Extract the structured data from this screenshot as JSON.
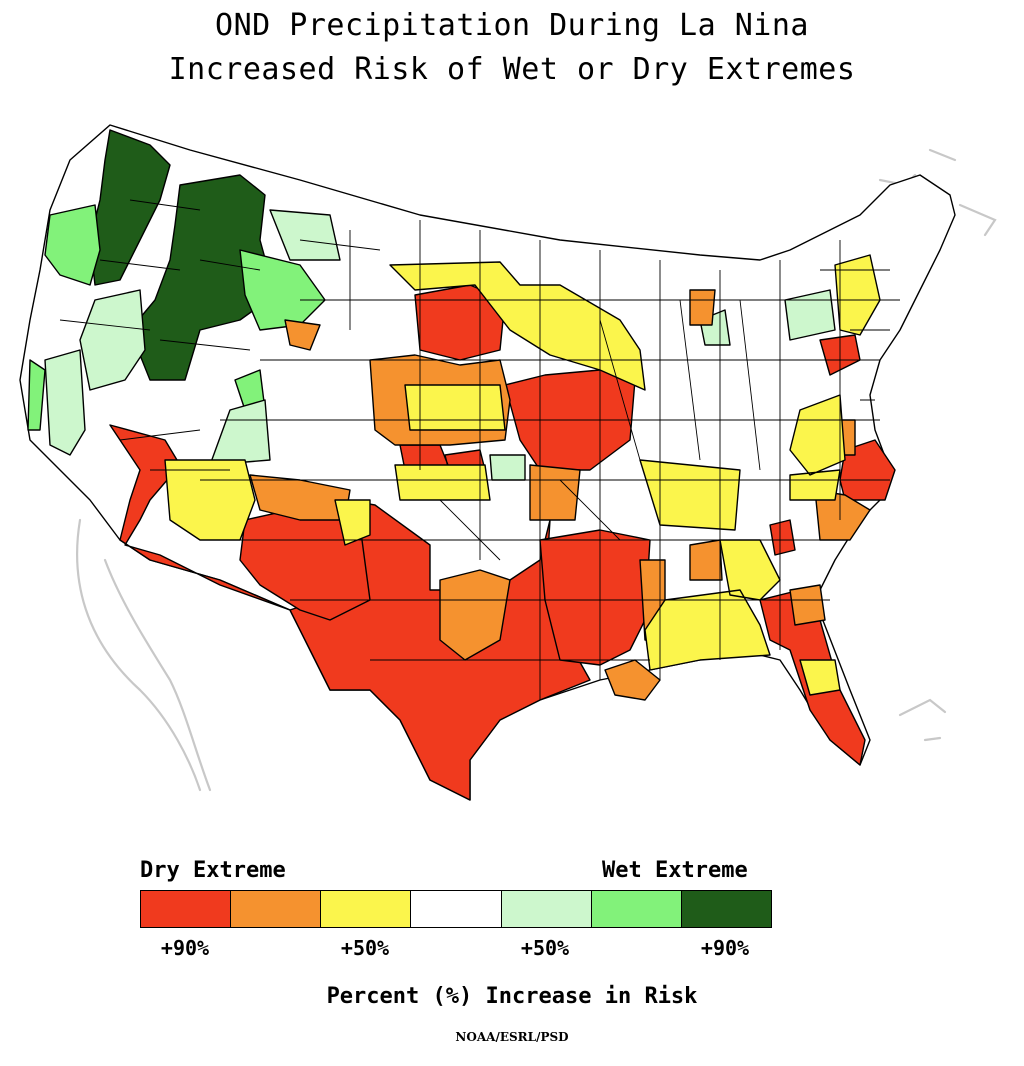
{
  "title_line1": "OND Precipitation During La Nina",
  "title_line2": "Increased Risk of Wet or Dry Extremes",
  "legend": {
    "dry_label": "Dry Extreme",
    "wet_label": "Wet Extreme",
    "colors": [
      "#f03a1e",
      "#f5922f",
      "#fbf54c",
      "#ffffff",
      "#cdf7cd",
      "#82f27a",
      "#1f5c19"
    ],
    "ticks": [
      "+90%",
      "+50%",
      "+50%",
      "+90%"
    ],
    "axis_label": "Percent (%) Increase in Risk"
  },
  "credit": "NOAA/ESRL/PSD",
  "map": {
    "regions": [
      {
        "name": "southwest-desert-dry",
        "category": "dry-90"
      },
      {
        "name": "texas-dry",
        "category": "dry-90"
      },
      {
        "name": "lower-mississippi-dry",
        "category": "dry-90"
      },
      {
        "name": "florida-dry",
        "category": "dry-90"
      },
      {
        "name": "northern-plains-dry",
        "category": "dry-90"
      },
      {
        "name": "carolinas-dry",
        "category": "dry-90"
      },
      {
        "name": "pennsylvania-dry",
        "category": "dry-90"
      },
      {
        "name": "central-plains-moderate",
        "category": "dry-70"
      },
      {
        "name": "west-texas-moderate",
        "category": "dry-70"
      },
      {
        "name": "louisiana-delta-moderate",
        "category": "dry-70"
      },
      {
        "name": "southeast-moderate",
        "category": "dry-70"
      },
      {
        "name": "new-mexico-yellow",
        "category": "dry-50"
      },
      {
        "name": "midwest-yellow",
        "category": "dry-50"
      },
      {
        "name": "gulf-coast-yellow",
        "category": "dry-50"
      },
      {
        "name": "northeast-yellow",
        "category": "dry-50"
      },
      {
        "name": "pacific-northwest-wet",
        "category": "wet-90"
      },
      {
        "name": "idaho-wet",
        "category": "wet-90"
      },
      {
        "name": "northwest-green",
        "category": "wet-70"
      },
      {
        "name": "great-basin-lightgreen",
        "category": "wet-50"
      }
    ]
  }
}
